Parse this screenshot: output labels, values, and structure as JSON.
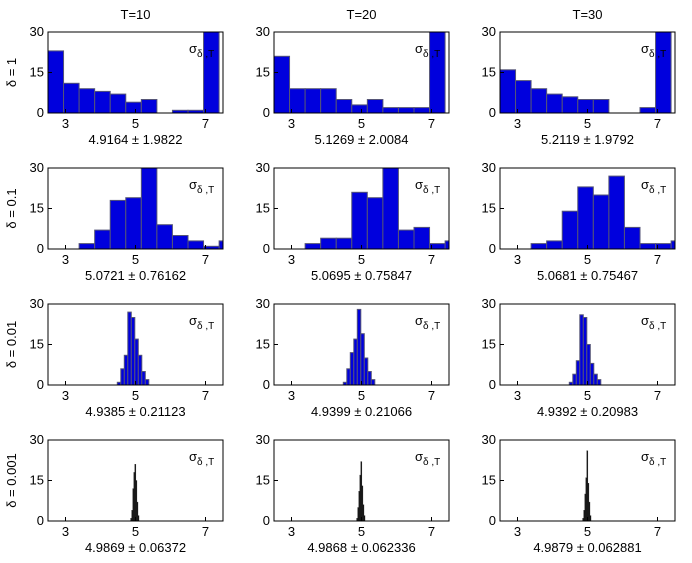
{
  "chart_data": {
    "type": "histogram-grid",
    "columns": [
      "T=10",
      "T=20",
      "T=30"
    ],
    "rows": [
      "δ = 1",
      "δ = 0.1",
      "δ = 0.01",
      "δ = 0.001"
    ],
    "xlim": [
      2.5,
      7.5
    ],
    "ylim": [
      0,
      30
    ],
    "xticks": [
      3,
      5,
      7
    ],
    "yticks": [
      0,
      15,
      30
    ],
    "sigma_label": "σ",
    "sigma_sub": "δ ,T",
    "pm_symbol": "±",
    "colors": {
      "bar_fill": "#0000dd",
      "bar_edge": "#555577",
      "bar_fill_dark": "#000000",
      "axis": "#000000"
    },
    "panels": [
      [
        {
          "bins": [
            [
              2.5,
              23
            ],
            [
              2.944,
              11
            ],
            [
              3.389,
              9
            ],
            [
              3.833,
              8
            ],
            [
              4.278,
              7
            ],
            [
              4.722,
              4
            ],
            [
              5.167,
              5
            ],
            [
              5.611,
              0
            ],
            [
              6.056,
              1
            ],
            [
              6.5,
              1
            ],
            [
              6.944,
              30
            ]
          ],
          "bin_width": 0.444,
          "mean": "4.9164",
          "std": "1.9822",
          "dark": false
        },
        {
          "bins": [
            [
              2.5,
              21
            ],
            [
              2.944,
              9
            ],
            [
              3.389,
              9
            ],
            [
              3.833,
              9
            ],
            [
              4.278,
              5
            ],
            [
              4.722,
              3
            ],
            [
              5.167,
              5
            ],
            [
              5.611,
              2
            ],
            [
              6.056,
              2
            ],
            [
              6.5,
              2
            ],
            [
              6.944,
              30
            ]
          ],
          "bin_width": 0.444,
          "mean": "5.1269",
          "std": "2.0084",
          "dark": false
        },
        {
          "bins": [
            [
              2.5,
              16
            ],
            [
              2.944,
              12
            ],
            [
              3.389,
              9
            ],
            [
              3.833,
              7
            ],
            [
              4.278,
              6
            ],
            [
              4.722,
              5
            ],
            [
              5.167,
              5
            ],
            [
              5.611,
              0
            ],
            [
              6.056,
              0
            ],
            [
              6.5,
              2
            ],
            [
              6.944,
              30
            ]
          ],
          "bin_width": 0.444,
          "mean": "5.2119",
          "std": "1.9792",
          "dark": false
        }
      ],
      [
        {
          "bins": [
            [
              2.5,
              0
            ],
            [
              2.944,
              0
            ],
            [
              3.389,
              2
            ],
            [
              3.833,
              7
            ],
            [
              4.278,
              18
            ],
            [
              4.722,
              19
            ],
            [
              5.167,
              30
            ],
            [
              5.611,
              9
            ],
            [
              6.056,
              5
            ],
            [
              6.5,
              3
            ],
            [
              6.944,
              1
            ],
            [
              7.389,
              3
            ]
          ],
          "bin_width": 0.444,
          "mean": "5.0721",
          "std": "0.76162",
          "dark": false
        },
        {
          "bins": [
            [
              2.5,
              0
            ],
            [
              2.944,
              0
            ],
            [
              3.389,
              2
            ],
            [
              3.833,
              4
            ],
            [
              4.278,
              4
            ],
            [
              4.722,
              21
            ],
            [
              5.167,
              19
            ],
            [
              5.611,
              30
            ],
            [
              6.056,
              7
            ],
            [
              6.5,
              8
            ],
            [
              6.944,
              2
            ],
            [
              7.389,
              3
            ]
          ],
          "bin_width": 0.444,
          "mean": "5.0695",
          "std": "0.75847",
          "dark": false
        },
        {
          "bins": [
            [
              2.5,
              0
            ],
            [
              2.944,
              0
            ],
            [
              3.389,
              2
            ],
            [
              3.833,
              3
            ],
            [
              4.278,
              14
            ],
            [
              4.722,
              23
            ],
            [
              5.167,
              20
            ],
            [
              5.611,
              27
            ],
            [
              6.056,
              8
            ],
            [
              6.5,
              2
            ],
            [
              6.944,
              2
            ],
            [
              7.389,
              3
            ]
          ],
          "bin_width": 0.444,
          "mean": "5.0681",
          "std": "0.75467",
          "dark": false
        }
      ],
      [
        {
          "bins": [
            [
              4.48,
              1
            ],
            [
              4.58,
              6
            ],
            [
              4.68,
              11
            ],
            [
              4.78,
              27
            ],
            [
              4.88,
              25
            ],
            [
              4.98,
              17
            ],
            [
              5.08,
              11
            ],
            [
              5.18,
              5
            ],
            [
              5.28,
              2
            ]
          ],
          "bin_width": 0.1,
          "mean": "4.9385",
          "std": "0.21123",
          "dark": false
        },
        {
          "bins": [
            [
              4.48,
              1
            ],
            [
              4.58,
              6
            ],
            [
              4.68,
              12
            ],
            [
              4.78,
              17
            ],
            [
              4.88,
              28
            ],
            [
              4.98,
              19
            ],
            [
              5.08,
              10
            ],
            [
              5.18,
              5
            ],
            [
              5.28,
              2
            ]
          ],
          "bin_width": 0.1,
          "mean": "4.9399",
          "std": "0.21066",
          "dark": false
        },
        {
          "bins": [
            [
              4.48,
              1
            ],
            [
              4.58,
              4
            ],
            [
              4.68,
              9
            ],
            [
              4.78,
              26
            ],
            [
              4.88,
              25
            ],
            [
              4.98,
              15
            ],
            [
              5.08,
              8
            ],
            [
              5.18,
              4
            ],
            [
              5.28,
              2
            ]
          ],
          "bin_width": 0.1,
          "mean": "4.9392",
          "std": "0.20983",
          "dark": false
        }
      ],
      [
        {
          "bins": [
            [
              4.86,
              1
            ],
            [
              4.89,
              4
            ],
            [
              4.92,
              12
            ],
            [
              4.95,
              18
            ],
            [
              4.98,
              21
            ],
            [
              5.01,
              15
            ],
            [
              5.04,
              7
            ],
            [
              5.07,
              2
            ]
          ],
          "bin_width": 0.03,
          "mean": "4.9869",
          "std": "0.06372",
          "dark": true
        },
        {
          "bins": [
            [
              4.86,
              1
            ],
            [
              4.89,
              5
            ],
            [
              4.92,
              11
            ],
            [
              4.95,
              17
            ],
            [
              4.98,
              22
            ],
            [
              5.01,
              13
            ],
            [
              5.04,
              6
            ],
            [
              5.07,
              2
            ]
          ],
          "bin_width": 0.03,
          "mean": "4.9868",
          "std": "0.062336",
          "dark": true
        },
        {
          "bins": [
            [
              4.86,
              1
            ],
            [
              4.89,
              4
            ],
            [
              4.92,
              10
            ],
            [
              4.95,
              16
            ],
            [
              4.98,
              26
            ],
            [
              5.01,
              14
            ],
            [
              5.04,
              7
            ],
            [
              5.07,
              2
            ]
          ],
          "bin_width": 0.03,
          "mean": "4.9879",
          "std": "0.062881",
          "dark": true
        }
      ]
    ]
  }
}
